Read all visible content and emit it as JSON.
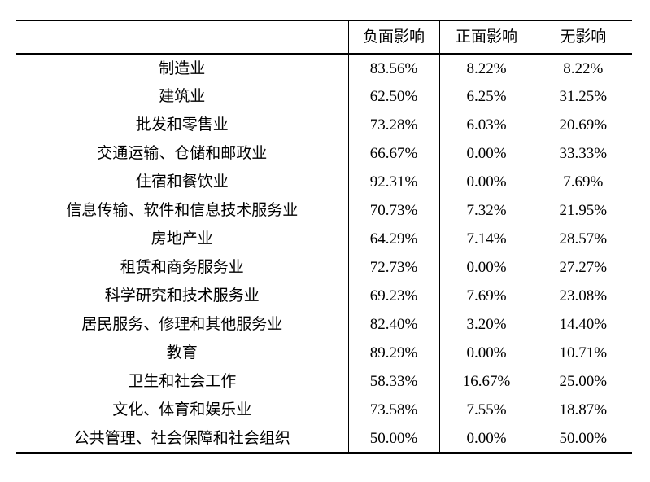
{
  "table": {
    "headers": [
      "",
      "负面影响",
      "正面影响",
      "无影响"
    ],
    "rows": [
      {
        "label": "制造业",
        "values": [
          "83.56%",
          "8.22%",
          "8.22%"
        ]
      },
      {
        "label": "建筑业",
        "values": [
          "62.50%",
          "6.25%",
          "31.25%"
        ]
      },
      {
        "label": "批发和零售业",
        "values": [
          "73.28%",
          "6.03%",
          "20.69%"
        ]
      },
      {
        "label": "交通运输、仓储和邮政业",
        "values": [
          "66.67%",
          "0.00%",
          "33.33%"
        ]
      },
      {
        "label": "住宿和餐饮业",
        "values": [
          "92.31%",
          "0.00%",
          "7.69%"
        ]
      },
      {
        "label": "信息传输、软件和信息技术服务业",
        "values": [
          "70.73%",
          "7.32%",
          "21.95%"
        ]
      },
      {
        "label": "房地产业",
        "values": [
          "64.29%",
          "7.14%",
          "28.57%"
        ]
      },
      {
        "label": "租赁和商务服务业",
        "values": [
          "72.73%",
          "0.00%",
          "27.27%"
        ]
      },
      {
        "label": "科学研究和技术服务业",
        "values": [
          "69.23%",
          "7.69%",
          "23.08%"
        ]
      },
      {
        "label": "居民服务、修理和其他服务业",
        "values": [
          "82.40%",
          "3.20%",
          "14.40%"
        ]
      },
      {
        "label": "教育",
        "values": [
          "89.29%",
          "0.00%",
          "10.71%"
        ]
      },
      {
        "label": "卫生和社会工作",
        "values": [
          "58.33%",
          "16.67%",
          "25.00%"
        ]
      },
      {
        "label": "文化、体育和娱乐业",
        "values": [
          "73.58%",
          "7.55%",
          "18.87%"
        ]
      },
      {
        "label": "公共管理、社会保障和社会组织",
        "values": [
          "50.00%",
          "0.00%",
          "50.00%"
        ]
      }
    ],
    "colors": {
      "text": "#000000",
      "rule": "#000000",
      "background": "#ffffff"
    }
  }
}
